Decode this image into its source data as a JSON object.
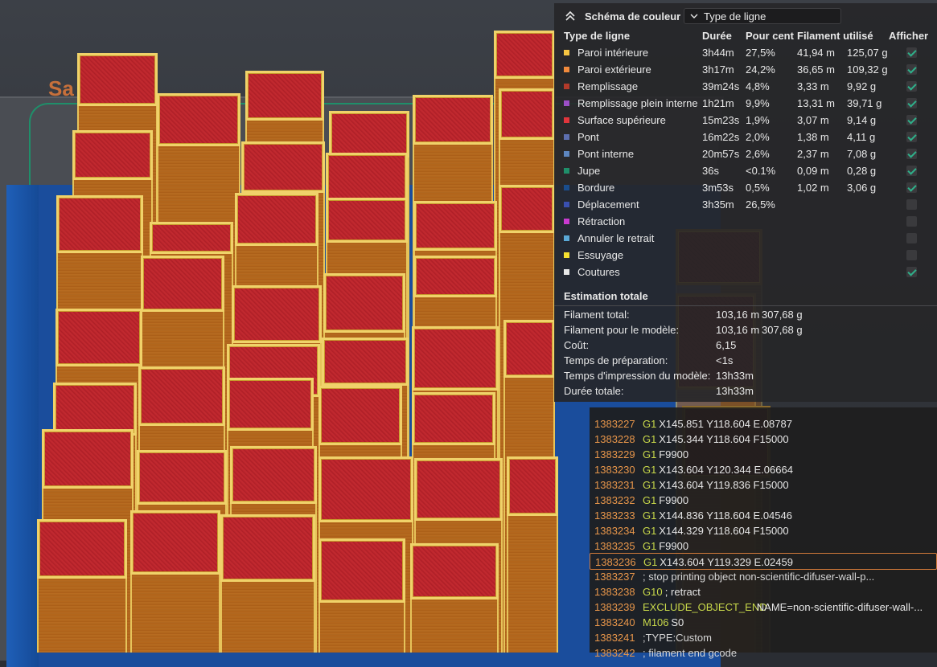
{
  "viewport": {
    "plate_label": "Sa"
  },
  "legend": {
    "collapse_icon": "chevron-up-double-icon",
    "scheme_title": "Schéma de couleur",
    "scheme_value": "Type de ligne",
    "columns": {
      "type": "Type de ligne",
      "duration": "Durée",
      "percent": "Pour cent",
      "filament": "Filament utilisé",
      "show": "Afficher"
    },
    "rows": [
      {
        "name": "Paroi intérieure",
        "color": "#f5c542",
        "duration": "3h44m",
        "percent": "27,5%",
        "length": "41,94 m",
        "weight": "125,07 g",
        "shown": true
      },
      {
        "name": "Paroi extérieure",
        "color": "#f08a3c",
        "duration": "3h17m",
        "percent": "24,2%",
        "length": "36,65 m",
        "weight": "109,32 g",
        "shown": true
      },
      {
        "name": "Remplissage",
        "color": "#b23a2a",
        "duration": "39m24s",
        "percent": "4,8%",
        "length": "3,33 m",
        "weight": "9,92 g",
        "shown": true
      },
      {
        "name": "Remplissage plein interne",
        "color": "#9b4fc7",
        "duration": "1h21m",
        "percent": "9,9%",
        "length": "13,31 m",
        "weight": "39,71 g",
        "shown": true
      },
      {
        "name": "Surface supérieure",
        "color": "#e0353c",
        "duration": "15m23s",
        "percent": "1,9%",
        "length": "3,07 m",
        "weight": "9,14 g",
        "shown": true
      },
      {
        "name": "Pont",
        "color": "#5d6fb0",
        "duration": "16m22s",
        "percent": "2,0%",
        "length": "1,38 m",
        "weight": "4,11 g",
        "shown": true
      },
      {
        "name": "Pont interne",
        "color": "#5d86c0",
        "duration": "20m57s",
        "percent": "2,6%",
        "length": "2,37 m",
        "weight": "7,08 g",
        "shown": true
      },
      {
        "name": "Jupe",
        "color": "#1f8f6a",
        "duration": "36s",
        "percent": "<0.1%",
        "length": "0,09 m",
        "weight": "0,28 g",
        "shown": true
      },
      {
        "name": "Bordure",
        "color": "#1a4d8c",
        "duration": "3m53s",
        "percent": "0,5%",
        "length": "1,02 m",
        "weight": "3,06 g",
        "shown": true
      },
      {
        "name": "Déplacement",
        "color": "#3a50b0",
        "duration": "3h35m",
        "percent": "26,5%",
        "length": "",
        "weight": "",
        "shown": false
      },
      {
        "name": "Rétraction",
        "color": "#c93ad0",
        "duration": "",
        "percent": "",
        "length": "",
        "weight": "",
        "shown": false
      },
      {
        "name": "Annuler le retrait",
        "color": "#5aa9d6",
        "duration": "",
        "percent": "",
        "length": "",
        "weight": "",
        "shown": false
      },
      {
        "name": "Essuyage",
        "color": "#f5e030",
        "duration": "",
        "percent": "",
        "length": "",
        "weight": "",
        "shown": false
      },
      {
        "name": "Coutures",
        "color": "#e8e8e8",
        "duration": "",
        "percent": "",
        "length": "",
        "weight": "",
        "shown": true
      }
    ],
    "estimate": {
      "title": "Estimation totale",
      "rows": [
        {
          "key": "Filament total:",
          "v1": "103,16 m",
          "v2": "307,68 g"
        },
        {
          "key": "Filament pour le modèle:",
          "v1": "103,16 m",
          "v2": "307,68 g"
        },
        {
          "key": "Coût:",
          "v1": "6,15",
          "v2": ""
        },
        {
          "key": "Temps de préparation:",
          "v1": "<1s",
          "v2": ""
        },
        {
          "key": "Temps d'impression du modèle:",
          "v1": "13h33m",
          "v2": ""
        },
        {
          "key": "Durée totale:",
          "v1": "13h33m",
          "v2": ""
        }
      ]
    }
  },
  "gcode": {
    "lines": [
      {
        "num": "1383227",
        "cmd": "G1",
        "args": "X145.851 Y118.604 E.08787",
        "selected": false
      },
      {
        "num": "1383228",
        "cmd": "G1",
        "args": "X145.344 Y118.604 F15000",
        "selected": false
      },
      {
        "num": "1383229",
        "cmd": "G1",
        "args": "F9900",
        "selected": false
      },
      {
        "num": "1383230",
        "cmd": "G1",
        "args": "X143.604 Y120.344 E.06664",
        "selected": false
      },
      {
        "num": "1383231",
        "cmd": "G1",
        "args": "X143.604 Y119.836 F15000",
        "selected": false
      },
      {
        "num": "1383232",
        "cmd": "G1",
        "args": "F9900",
        "selected": false
      },
      {
        "num": "1383233",
        "cmd": "G1",
        "args": "X144.836 Y118.604 E.04546",
        "selected": false
      },
      {
        "num": "1383234",
        "cmd": "G1",
        "args": "X144.329 Y118.604 F15000",
        "selected": false
      },
      {
        "num": "1383235",
        "cmd": "G1",
        "args": "F9900",
        "selected": false
      },
      {
        "num": "1383236",
        "cmd": "G1",
        "args": "X143.604 Y119.329 E.02459",
        "selected": true
      },
      {
        "num": "1383237",
        "cmd": "",
        "args": "; stop printing object non-scientific-difuser-wall-p...",
        "selected": false
      },
      {
        "num": "1383238",
        "cmd": "G10",
        "args": "; retract",
        "selected": false
      },
      {
        "num": "1383239",
        "cmd": "EXCLUDE_OBJECT_END",
        "args": "NAME=non-scientific-difuser-wall-...",
        "selected": false
      },
      {
        "num": "1383240",
        "cmd": "M106",
        "args": "S0",
        "selected": false
      },
      {
        "num": "1383241",
        "cmd": "",
        "args": ";TYPE:Custom",
        "selected": false
      },
      {
        "num": "1383242",
        "cmd": "",
        "args": "; filament end gcode",
        "selected": false
      }
    ]
  }
}
